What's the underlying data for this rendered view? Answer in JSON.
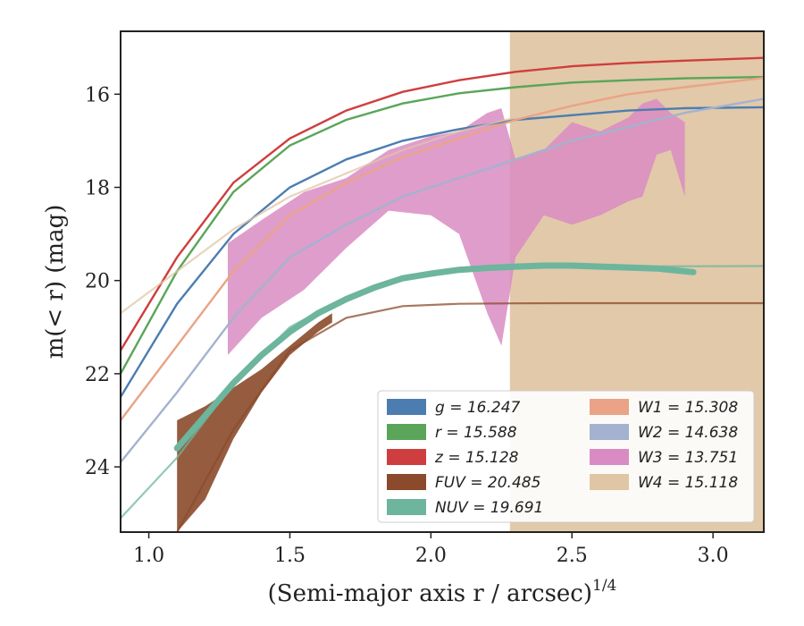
{
  "chart_data": {
    "type": "line",
    "xlabel": "(Semi-major axis r / arcsec)",
    "xlabel_power": "1/4",
    "ylabel": "m(< r) (mag)",
    "xlim": [
      0.9,
      3.18
    ],
    "ylim": [
      25.4,
      14.65
    ],
    "y_inverted": true,
    "x_ticks": [
      "1.0",
      "1.5",
      "2.0",
      "2.5",
      "3.0"
    ],
    "y_ticks": [
      "16",
      "18",
      "20",
      "22",
      "24"
    ],
    "x_tick_values": [
      1.0,
      1.5,
      2.0,
      2.5,
      3.0
    ],
    "y_tick_values": [
      16,
      18,
      20,
      22,
      24
    ],
    "legend_position": "lower-right",
    "series": [
      {
        "name": "g = 16.247",
        "color": "#4c7db0",
        "kind": "line",
        "x": [
          0.9,
          1.1,
          1.3,
          1.5,
          1.7,
          1.9,
          2.1,
          2.3,
          2.5,
          2.7,
          2.9,
          3.18
        ],
        "y": [
          22.5,
          20.5,
          19.0,
          18.0,
          17.4,
          17.0,
          16.75,
          16.55,
          16.45,
          16.35,
          16.3,
          16.28
        ]
      },
      {
        "name": "r = 15.588",
        "color": "#5aa55a",
        "kind": "line",
        "x": [
          0.9,
          1.1,
          1.3,
          1.5,
          1.7,
          1.9,
          2.1,
          2.3,
          2.5,
          2.7,
          2.9,
          3.18
        ],
        "y": [
          22.0,
          19.8,
          18.1,
          17.1,
          16.55,
          16.2,
          15.98,
          15.85,
          15.75,
          15.7,
          15.66,
          15.63
        ]
      },
      {
        "name": "z = 15.128",
        "color": "#cf3e3e",
        "kind": "line",
        "x": [
          0.9,
          1.1,
          1.3,
          1.5,
          1.7,
          1.9,
          2.1,
          2.3,
          2.5,
          2.7,
          2.9,
          3.18
        ],
        "y": [
          21.5,
          19.5,
          17.9,
          16.95,
          16.35,
          15.95,
          15.7,
          15.52,
          15.4,
          15.33,
          15.28,
          15.22
        ]
      },
      {
        "name": "FUV = 20.485",
        "color": "#8b4a2b",
        "kind": "band",
        "x": [
          1.1,
          1.2,
          1.3,
          1.4,
          1.5,
          1.6,
          1.65
        ],
        "y_low": [
          25.4,
          24.7,
          23.4,
          22.4,
          21.6,
          21.1,
          20.9
        ],
        "y_high": [
          23.0,
          22.7,
          22.3,
          21.9,
          21.4,
          20.9,
          20.7
        ]
      },
      {
        "name": "NUV = 19.691",
        "color": "#6db59d",
        "kind": "line",
        "x": [
          1.1,
          1.2,
          1.3,
          1.4,
          1.5,
          1.6,
          1.7,
          1.8,
          1.9,
          2.0,
          2.1,
          2.2,
          2.3,
          2.4,
          2.5,
          2.6,
          2.7,
          2.8,
          2.93
        ],
        "y": [
          23.6,
          22.9,
          22.2,
          21.6,
          21.1,
          20.7,
          20.4,
          20.15,
          19.95,
          19.85,
          19.77,
          19.73,
          19.7,
          19.68,
          19.68,
          19.7,
          19.72,
          19.74,
          19.82
        ]
      },
      {
        "name": "W1 = 15.308",
        "color": "#eaa386",
        "kind": "line",
        "x": [
          0.9,
          1.1,
          1.3,
          1.5,
          1.7,
          1.9,
          2.1,
          2.3,
          2.5,
          2.7,
          2.9,
          3.18
        ],
        "y": [
          23.0,
          21.4,
          19.8,
          18.6,
          17.9,
          17.35,
          16.95,
          16.55,
          16.25,
          16.0,
          15.85,
          15.65
        ]
      },
      {
        "name": "W2 = 14.638",
        "color": "#a5b2cf",
        "kind": "line",
        "x": [
          0.9,
          1.1,
          1.3,
          1.5,
          1.7,
          1.9,
          2.1,
          2.3,
          2.5,
          2.7,
          2.9,
          3.18
        ],
        "y": [
          23.9,
          22.4,
          20.8,
          19.5,
          18.8,
          18.2,
          17.8,
          17.4,
          17.0,
          16.7,
          16.4,
          16.1
        ]
      },
      {
        "name": "W3 = 13.751",
        "color": "#d98cc3",
        "kind": "band",
        "x": [
          1.28,
          1.4,
          1.55,
          1.7,
          1.85,
          2.0,
          2.1,
          2.2,
          2.25,
          2.3,
          2.4,
          2.5,
          2.6,
          2.7,
          2.75,
          2.8,
          2.85,
          2.9
        ],
        "y_low": [
          21.6,
          20.8,
          20.2,
          19.3,
          18.5,
          18.6,
          19.0,
          20.7,
          21.4,
          19.5,
          18.6,
          18.8,
          18.6,
          18.3,
          18.2,
          17.3,
          17.2,
          18.2
        ],
        "y_high": [
          19.2,
          18.7,
          18.1,
          17.8,
          17.2,
          16.9,
          16.8,
          16.4,
          16.3,
          17.4,
          17.2,
          16.6,
          16.8,
          16.5,
          16.2,
          16.1,
          16.4,
          16.6
        ]
      },
      {
        "name": "W4 = 15.118",
        "color": "#e0c6a4",
        "kind": "band",
        "x": [
          2.28,
          2.32,
          2.5,
          2.6,
          2.8,
          2.9,
          2.95,
          3.0,
          3.18
        ],
        "y_low": [
          25.4,
          25.4,
          25.4,
          25.4,
          25.4,
          25.4,
          25.4,
          25.4,
          25.4
        ],
        "y_high": [
          14.65,
          14.65,
          14.65,
          14.65,
          14.65,
          14.65,
          14.65,
          14.65,
          14.65
        ]
      }
    ],
    "extra_lines": [
      {
        "series": "FUV = 20.485",
        "x": [
          1.1,
          1.3,
          1.5,
          1.7,
          1.9,
          2.1,
          2.3,
          2.5,
          3.18
        ],
        "y": [
          25.4,
          23.2,
          21.5,
          20.8,
          20.55,
          20.5,
          20.49,
          20.485,
          20.485
        ]
      },
      {
        "series": "NUV = 19.691",
        "x": [
          0.9,
          1.1,
          1.3,
          1.5,
          1.7,
          1.9,
          2.1,
          2.3,
          2.5,
          3.18
        ],
        "y": [
          25.1,
          23.8,
          22.2,
          21.0,
          20.35,
          20.0,
          19.8,
          19.72,
          19.7,
          19.69
        ]
      },
      {
        "series": "W4 = 15.118",
        "x": [
          0.9,
          1.1,
          1.3,
          1.5,
          1.7,
          1.9,
          2.1,
          2.3
        ],
        "y": [
          20.7,
          19.8,
          18.9,
          18.2,
          17.7,
          17.2,
          16.8,
          16.5
        ]
      }
    ]
  }
}
